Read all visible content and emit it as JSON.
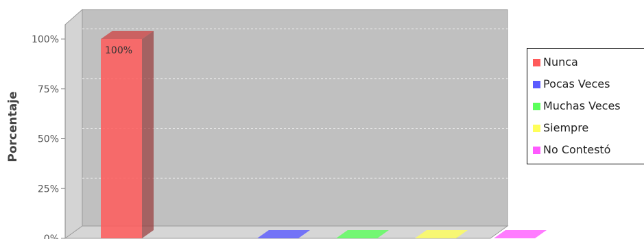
{
  "chart_data": {
    "type": "bar",
    "title": "",
    "xlabel": "",
    "ylabel": "Porcentaje",
    "ylim": [
      0,
      100
    ],
    "y_ticks": [
      "0%",
      "25%",
      "50%",
      "75%",
      "100%"
    ],
    "grid": true,
    "legend_placement": "right",
    "series": [
      {
        "name": "Nunca",
        "values": [
          100
        ],
        "color": "#ff5a5a",
        "label": "100%"
      },
      {
        "name": "Pocas Veces",
        "values": [
          0
        ],
        "color": "#5a5aff",
        "label": ""
      },
      {
        "name": "Muchas Veces",
        "values": [
          0
        ],
        "color": "#5aff5a",
        "label": ""
      },
      {
        "name": "Siempre",
        "values": [
          0
        ],
        "color": "#ffff5a",
        "label": ""
      },
      {
        "name": "No Contestó",
        "values": [
          0
        ],
        "color": "#ff5aff",
        "label": ""
      }
    ]
  }
}
